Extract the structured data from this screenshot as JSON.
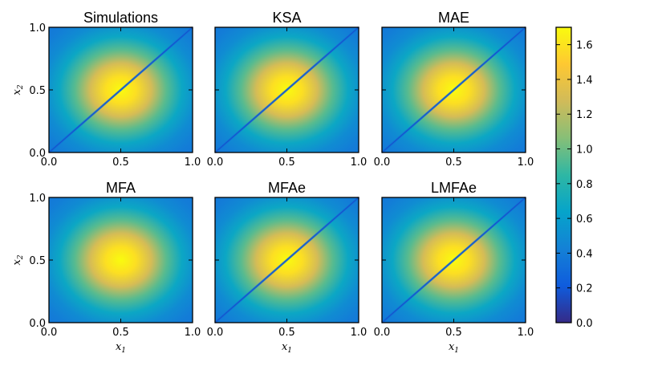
{
  "chart_data": {
    "type": "heatmap",
    "field": "gaussian bump centred at (0.5, 0.5) with a low-valued band along the diagonal x2 = x1",
    "peak_value": 1.7,
    "edge_value": 0.35,
    "diagonal_value": 0.3,
    "panels": [
      {
        "title": "Simulations",
        "diagonal": true
      },
      {
        "title": "KSA",
        "diagonal": true
      },
      {
        "title": "MAE",
        "diagonal": true
      },
      {
        "title": "MFA",
        "diagonal": false
      },
      {
        "title": "MFAe",
        "diagonal": true
      },
      {
        "title": "LMFAe",
        "diagonal": true
      }
    ],
    "x_ticks": [
      "0.0",
      "0.5",
      "1.0"
    ],
    "y_ticks": [
      "0.0",
      "0.5",
      "1.0"
    ],
    "xlabel": "x",
    "xlabel_sub": "1",
    "ylabel": "x",
    "ylabel_sub": "2",
    "xlim": [
      0,
      1
    ],
    "ylim": [
      0,
      1
    ],
    "colorbar": {
      "min": 0.0,
      "max": 1.7,
      "ticks": [
        "0.0",
        "0.2",
        "0.4",
        "0.6",
        "0.8",
        "1.0",
        "1.2",
        "1.4",
        "1.6"
      ],
      "colormap": [
        "#352a87",
        "#0f5cdd",
        "#1481d6",
        "#06a4ca",
        "#2eb7a4",
        "#87bf77",
        "#d1bb59",
        "#fec832",
        "#f9fb0e"
      ]
    }
  }
}
